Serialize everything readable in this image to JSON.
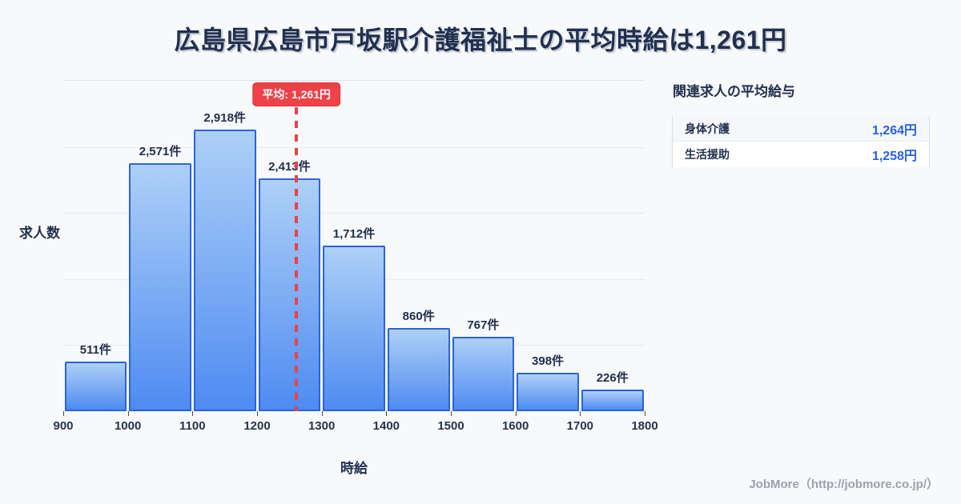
{
  "title": "広島県広島市戸坂駅介護福祉士の平均時給は1,261円",
  "chart_data": {
    "type": "bar",
    "title": "広島県広島市戸坂駅介護福祉士の平均時給は1,261円",
    "xlabel": "時給",
    "ylabel": "求人数",
    "bin_edges": [
      900,
      1000,
      1100,
      1200,
      1300,
      1400,
      1500,
      1600,
      1700,
      1800
    ],
    "values": [
      511,
      2571,
      2918,
      2413,
      1712,
      860,
      767,
      398,
      226
    ],
    "value_labels": [
      "511件",
      "2,571件",
      "2,918件",
      "2,413件",
      "1,712件",
      "860件",
      "767件",
      "398件",
      "226件"
    ],
    "mean": 1261,
    "mean_label": "平均: 1,261円",
    "xlim": [
      900,
      1800
    ],
    "grid": true,
    "legend": "none"
  },
  "side_panel": {
    "title": "関連求人の平均給与",
    "rows": [
      {
        "label": "身体介護",
        "value": "1,264円"
      },
      {
        "label": "生活援助",
        "value": "1,258円"
      }
    ]
  },
  "footer": {
    "credit": "JobMore（http://jobmore.co.jp/）"
  },
  "colors": {
    "background": "#f8f9fb",
    "navy_ink": "#22304e",
    "bar_border": "#2a64d8",
    "bar_gradient_top": "#aed0f7",
    "bar_gradient_bottom": "#4e8bf1",
    "mean_red": "#ee4148",
    "gridline": "#e6eaf2",
    "panel_value_blue": "#2563e4",
    "footer_gray": "#9ba1ab"
  }
}
